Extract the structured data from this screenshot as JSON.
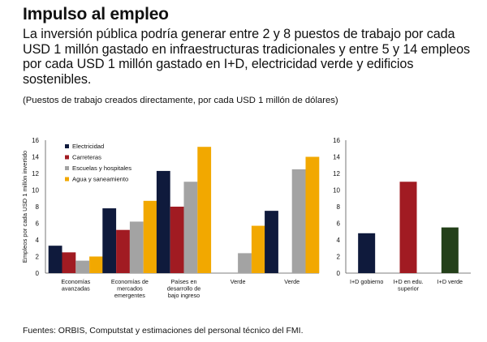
{
  "title": "Impulso al empleo",
  "subtitle": "La inversión pública podría generar entre 2 y 8 puestos de trabajo por cada USD 1 millón gastado en infraestructuras tradicionales y entre 5 y 14 empleos por cada USD 1 millón gastado en I+D, electricidad verde y edificios sostenibles.",
  "note": "(Puestos de trabajo creados directamente, por cada USD 1 millón de dólares)",
  "source": "Fuentes: ORBIS, Computstat y estimaciones del personal técnico del FMI.",
  "chart_data": [
    {
      "type": "bar",
      "ylabel": "Empleos por cada USD 1 millón invertido",
      "ylim": [
        0,
        16
      ],
      "yticks": [
        0,
        2,
        4,
        6,
        8,
        10,
        12,
        14,
        16
      ],
      "legend_position": "top-left",
      "categories": [
        "Economías avanzadas",
        "Economías de mercados emergentes",
        "Países en desarrollo de bajo ingreso",
        "Verde",
        "Verde"
      ],
      "series": [
        {
          "name": "Electricidad",
          "color": "#0f1a3c",
          "values": [
            3.3,
            7.8,
            12.3,
            null,
            7.5
          ]
        },
        {
          "name": "Carreteras",
          "color": "#a11b22",
          "values": [
            2.5,
            5.2,
            8.0,
            null,
            null
          ]
        },
        {
          "name": "Escuelas y hospitales",
          "color": "#a3a3a3",
          "values": [
            1.5,
            6.2,
            11.0,
            2.4,
            12.5
          ]
        },
        {
          "name": "Agua y saneamiento",
          "color": "#f2a800",
          "values": [
            2.0,
            8.7,
            15.2,
            5.7,
            14.0
          ]
        }
      ]
    },
    {
      "type": "bar",
      "ylim": [
        0,
        16
      ],
      "yticks": [
        0,
        2,
        4,
        6,
        8,
        10,
        12,
        14,
        16
      ],
      "categories": [
        "I+D gobierno",
        "I+D en edu. superior",
        "I+D verde"
      ],
      "values": [
        4.8,
        11.0,
        5.5
      ],
      "colors": [
        "#0f1a3c",
        "#a11b22",
        "#24401a"
      ]
    }
  ]
}
